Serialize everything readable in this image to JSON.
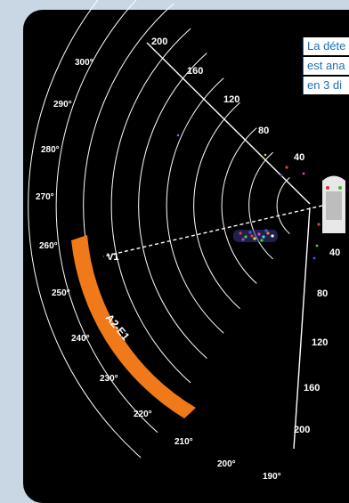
{
  "caption": {
    "lines": [
      "La déte",
      "est ana",
      "en 3 di"
    ]
  },
  "range_labels_upper": [
    "200",
    "160",
    "120",
    "80",
    "40"
  ],
  "range_labels_lower": [
    "40",
    "80",
    "120",
    "160",
    "200"
  ],
  "bearing_labels": [
    "300°",
    "290°",
    "280°",
    "270°",
    "260°",
    "250°",
    "240°",
    "230°",
    "220°",
    "210°",
    "200°",
    "190°"
  ],
  "vector_label": "V1",
  "sector_label": "A2-E1",
  "colors": {
    "sector": "#f07a1a",
    "grid": "#ffffff",
    "caption_text": "#1b6fb8"
  }
}
